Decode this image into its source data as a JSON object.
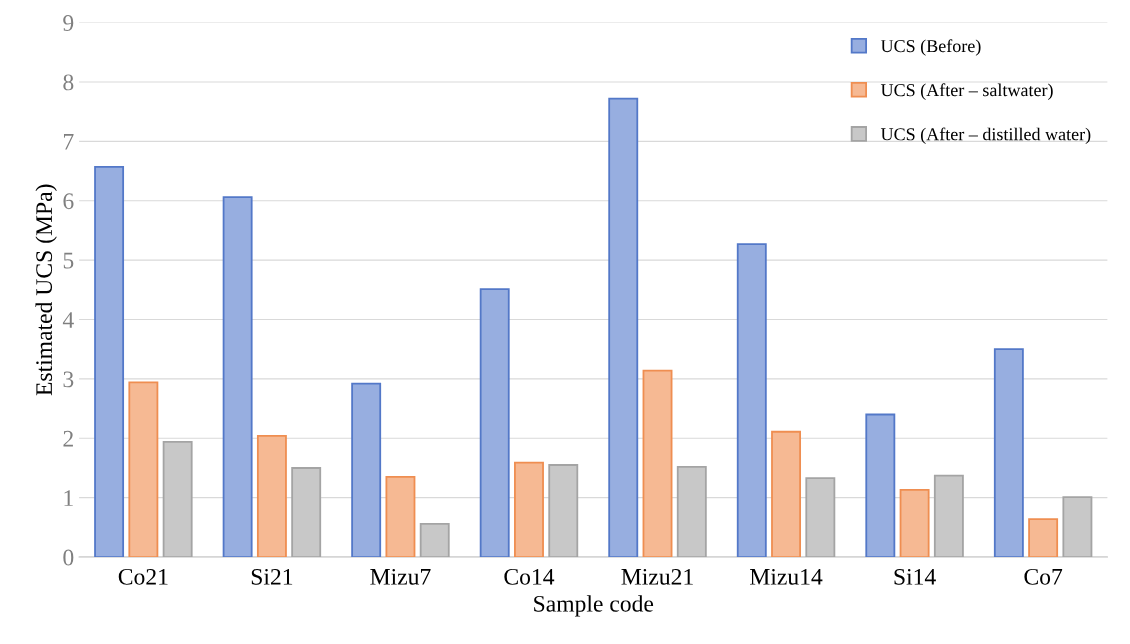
{
  "chart_data": {
    "type": "bar",
    "xlabel": "Sample code",
    "ylabel": "Estimated UCS (MPa)",
    "categories": [
      "Co21",
      "Si21",
      "Mizu7",
      "Co14",
      "Mizu21",
      "Mizu14",
      "Si14",
      "Co7"
    ],
    "series": [
      {
        "name": "UCS (Before)",
        "color": "#97aee0",
        "values": [
          6.57,
          6.06,
          2.92,
          4.51,
          7.72,
          5.27,
          2.4,
          3.5
        ]
      },
      {
        "name": "UCS (After – saltwater)",
        "color": "#f6b993",
        "values": [
          2.94,
          2.04,
          1.35,
          1.59,
          3.14,
          2.11,
          1.13,
          0.64
        ]
      },
      {
        "name": "UCS (After – distilled water)",
        "color": "#c8c8c8",
        "values": [
          1.94,
          1.5,
          0.56,
          1.55,
          1.52,
          1.33,
          1.37,
          1.01
        ]
      }
    ],
    "ylim": [
      0,
      9
    ],
    "yticks": [
      0,
      1,
      2,
      3,
      4,
      5,
      6,
      7,
      8,
      9
    ],
    "grid": "y",
    "legend": "top right"
  }
}
